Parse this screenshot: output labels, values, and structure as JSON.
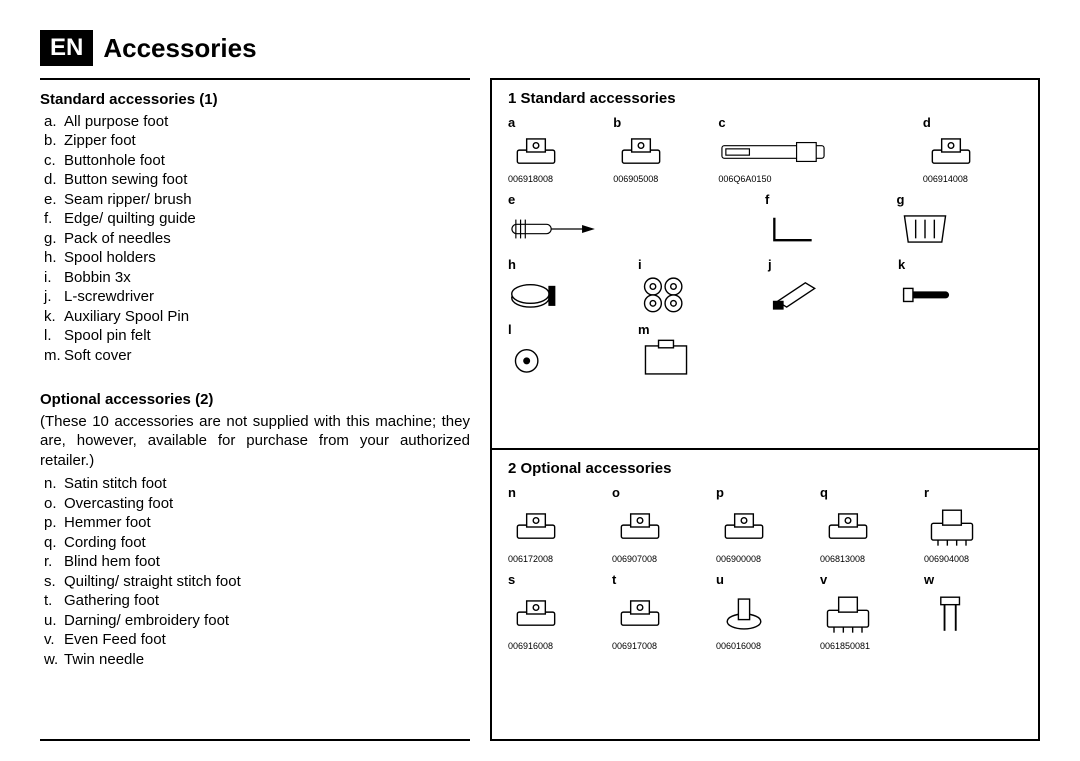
{
  "lang_badge": "EN",
  "page_title": "Accessories",
  "standard": {
    "heading": "Standard accessories (1)",
    "items": [
      {
        "letter": "a.",
        "text": "All purpose foot"
      },
      {
        "letter": "b.",
        "text": "Zipper foot"
      },
      {
        "letter": "c.",
        "text": "Buttonhole foot"
      },
      {
        "letter": "d.",
        "text": "Button sewing foot"
      },
      {
        "letter": "e.",
        "text": "Seam ripper/ brush"
      },
      {
        "letter": "f.",
        "text": "Edge/ quilting guide"
      },
      {
        "letter": "g.",
        "text": "Pack of needles"
      },
      {
        "letter": "h.",
        "text": "Spool holders"
      },
      {
        "letter": "i.",
        "text": "Bobbin 3x"
      },
      {
        "letter": "j.",
        "text": "L-screwdriver"
      },
      {
        "letter": "k.",
        "text": "Auxiliary Spool Pin"
      },
      {
        "letter": "l.",
        "text": "Spool pin felt"
      },
      {
        "letter": "m.",
        "text": "Soft cover"
      }
    ]
  },
  "optional": {
    "heading": "Optional  accessories (2)",
    "intro": "(These 10 accessories are not supplied with this machine; they are, however, available for purchase from your authorized retailer.)",
    "items": [
      {
        "letter": "n.",
        "text": "Satin stitch foot"
      },
      {
        "letter": "o.",
        "text": "Overcasting foot"
      },
      {
        "letter": "p.",
        "text": "Hemmer foot"
      },
      {
        "letter": "q.",
        "text": "Cording foot"
      },
      {
        "letter": "r.",
        "text": "Blind hem foot"
      },
      {
        "letter": "s.",
        "text": "Quilting/ straight stitch foot"
      },
      {
        "letter": "t.",
        "text": "Gathering foot"
      },
      {
        "letter": "u.",
        "text": "Darning/ embroidery foot"
      },
      {
        "letter": "v.",
        "text": "Even Feed foot"
      },
      {
        "letter": "w.",
        "text": "Twin needle"
      }
    ]
  },
  "panel_standard": {
    "title": "1 Standard accessories",
    "rows": [
      [
        {
          "label": "a",
          "part": "006918008",
          "icon": "foot-a"
        },
        {
          "label": "b",
          "part": "006905008",
          "icon": "foot-b"
        },
        {
          "label": "c",
          "part": "006Q6A0150",
          "icon": "buttonhole",
          "wide": true
        },
        {
          "label": "d",
          "part": "006914008",
          "icon": "foot-d"
        }
      ],
      [
        {
          "label": "e",
          "icon": "ripper",
          "wide": true
        },
        {
          "label": "f",
          "icon": "guide"
        },
        {
          "label": "g",
          "icon": "needles"
        }
      ],
      [
        {
          "label": "h",
          "icon": "spool-holder"
        },
        {
          "label": "i",
          "icon": "bobbins"
        },
        {
          "label": "j",
          "icon": "screwdriver"
        },
        {
          "label": "k",
          "icon": "spool-pin"
        }
      ],
      [
        {
          "label": "l",
          "icon": "felt"
        },
        {
          "label": "m",
          "icon": "cover"
        },
        {
          "label": "",
          "icon": "blank"
        },
        {
          "label": "",
          "icon": "blank"
        }
      ]
    ]
  },
  "panel_optional": {
    "title": "2 Optional  accessories",
    "rows": [
      [
        {
          "label": "n",
          "part": "006172008",
          "icon": "foot-n"
        },
        {
          "label": "o",
          "part": "006907008",
          "icon": "foot-o"
        },
        {
          "label": "p",
          "part": "006900008",
          "icon": "foot-p"
        },
        {
          "label": "q",
          "part": "006813008",
          "icon": "foot-q"
        },
        {
          "label": "r",
          "part": "006904008",
          "icon": "foot-r"
        }
      ],
      [
        {
          "label": "s",
          "part": "006916008",
          "icon": "foot-s"
        },
        {
          "label": "t",
          "part": "006917008",
          "icon": "foot-t"
        },
        {
          "label": "u",
          "part": "006016008",
          "icon": "foot-u"
        },
        {
          "label": "v",
          "part": "0061850081",
          "icon": "foot-v"
        },
        {
          "label": "w",
          "part": "",
          "icon": "twin-needle"
        }
      ]
    ]
  },
  "colors": {
    "stroke": "#000000",
    "fill": "#ffffff"
  }
}
